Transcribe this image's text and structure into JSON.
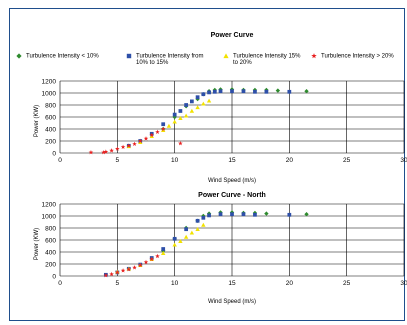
{
  "legend": [
    {
      "label_lines": [
        "Turbulence Intensity < 10%"
      ],
      "color": "#2e8b2e",
      "marker": "diamond"
    },
    {
      "label_lines": [
        "Turbulence Intensity from",
        "10% to 15%"
      ],
      "color": "#2e4fa8",
      "marker": "square"
    },
    {
      "label_lines": [
        "Turbulence Intensity 15%",
        "to 20%"
      ],
      "color": "#f2e200",
      "marker": "triangle"
    },
    {
      "label_lines": [
        "Turbulence Intensity > 20%"
      ],
      "color": "#e82020",
      "marker": "star"
    }
  ],
  "chart_data": [
    {
      "type": "scatter",
      "title": "Power Curve",
      "xlabel": "Wind Speed (m/s)",
      "ylabel": "Power (KW)",
      "xlim": [
        0,
        30
      ],
      "ylim": [
        0,
        1200
      ],
      "xticks": [
        0,
        5,
        10,
        15,
        20,
        25,
        30
      ],
      "yticks": [
        0,
        200,
        400,
        600,
        800,
        1000,
        1200
      ],
      "grid": true,
      "legend_position": "top",
      "series": [
        {
          "name": "Turbulence Intensity < 10%",
          "color": "#2e8b2e",
          "marker": "diamond",
          "points": [
            [
              9,
              400
            ],
            [
              10,
              600
            ],
            [
              11,
              780
            ],
            [
              12,
              900
            ],
            [
              12.5,
              980
            ],
            [
              13,
              1030
            ],
            [
              13.5,
              1050
            ],
            [
              14,
              1060
            ],
            [
              15,
              1060
            ],
            [
              16,
              1050
            ],
            [
              17,
              1050
            ],
            [
              18,
              1050
            ],
            [
              19,
              1040
            ],
            [
              21.5,
              1030
            ]
          ]
        },
        {
          "name": "Turbulence Intensity from 10% to 15%",
          "color": "#2e4fa8",
          "marker": "square",
          "points": [
            [
              6,
              120
            ],
            [
              7,
              200
            ],
            [
              8,
              320
            ],
            [
              9,
              480
            ],
            [
              10,
              640
            ],
            [
              10.5,
              700
            ],
            [
              11,
              800
            ],
            [
              11.5,
              860
            ],
            [
              12,
              930
            ],
            [
              12.5,
              980
            ],
            [
              13,
              1010
            ],
            [
              13.5,
              1020
            ],
            [
              14,
              1030
            ],
            [
              15,
              1030
            ],
            [
              16,
              1030
            ],
            [
              17,
              1020
            ],
            [
              18,
              1020
            ],
            [
              20,
              1020
            ]
          ]
        },
        {
          "name": "Turbulence Intensity 15% to 20%",
          "color": "#f2e200",
          "marker": "triangle",
          "points": [
            [
              6,
              110
            ],
            [
              7,
              180
            ],
            [
              8,
              280
            ],
            [
              9,
              380
            ],
            [
              9.5,
              450
            ],
            [
              10,
              520
            ],
            [
              10.5,
              580
            ],
            [
              11,
              620
            ],
            [
              11.5,
              700
            ],
            [
              12,
              760
            ],
            [
              12.5,
              820
            ],
            [
              13,
              870
            ]
          ]
        },
        {
          "name": "Turbulence Intensity > 20%",
          "color": "#e82020",
          "marker": "star",
          "points": [
            [
              2.7,
              10
            ],
            [
              3.8,
              10
            ],
            [
              4,
              20
            ],
            [
              4.5,
              40
            ],
            [
              5,
              70
            ],
            [
              5.5,
              100
            ],
            [
              6,
              120
            ],
            [
              6.5,
              150
            ],
            [
              7,
              200
            ],
            [
              7.5,
              240
            ],
            [
              8,
              300
            ],
            [
              8.5,
              350
            ],
            [
              9,
              400
            ],
            [
              10.5,
              160
            ]
          ]
        }
      ]
    },
    {
      "type": "scatter",
      "title": "Power Curve - North",
      "xlabel": "Wind Speed (m/s)",
      "ylabel": "Power (KW)",
      "xlim": [
        0,
        30
      ],
      "ylim": [
        0,
        1200
      ],
      "xticks": [
        0,
        5,
        10,
        15,
        20,
        25,
        30
      ],
      "yticks": [
        0,
        200,
        400,
        600,
        800,
        1000,
        1200
      ],
      "grid": true,
      "series": [
        {
          "name": "Turbulence Intensity < 10%",
          "color": "#2e8b2e",
          "marker": "diamond",
          "points": [
            [
              9,
              420
            ],
            [
              10,
              620
            ],
            [
              11,
              800
            ],
            [
              12,
              920
            ],
            [
              12.5,
              1000
            ],
            [
              13,
              1040
            ],
            [
              14,
              1060
            ],
            [
              15,
              1060
            ],
            [
              16,
              1050
            ],
            [
              17,
              1050
            ],
            [
              18,
              1040
            ],
            [
              21.5,
              1030
            ]
          ]
        },
        {
          "name": "Turbulence Intensity from 10% to 15%",
          "color": "#2e4fa8",
          "marker": "square",
          "points": [
            [
              4,
              20
            ],
            [
              5,
              60
            ],
            [
              6,
              120
            ],
            [
              7,
              190
            ],
            [
              8,
              300
            ],
            [
              9,
              450
            ],
            [
              10,
              620
            ],
            [
              11,
              780
            ],
            [
              12,
              920
            ],
            [
              12.5,
              970
            ],
            [
              13,
              1010
            ],
            [
              14,
              1030
            ],
            [
              15,
              1030
            ],
            [
              16,
              1030
            ],
            [
              17,
              1020
            ],
            [
              20,
              1020
            ]
          ]
        },
        {
          "name": "Turbulence Intensity 15% to 20%",
          "color": "#f2e200",
          "marker": "triangle",
          "points": [
            [
              5,
              70
            ],
            [
              6,
              120
            ],
            [
              7,
              180
            ],
            [
              8,
              280
            ],
            [
              9,
              380
            ],
            [
              10,
              520
            ],
            [
              10.5,
              580
            ],
            [
              11,
              650
            ],
            [
              11.5,
              720
            ],
            [
              12,
              780
            ],
            [
              12.5,
              850
            ]
          ]
        },
        {
          "name": "Turbulence Intensity > 20%",
          "color": "#e82020",
          "marker": "star",
          "points": [
            [
              4,
              10
            ],
            [
              4.5,
              30
            ],
            [
              5,
              60
            ],
            [
              5.5,
              90
            ],
            [
              6,
              110
            ],
            [
              6.5,
              140
            ],
            [
              7,
              180
            ],
            [
              7.5,
              230
            ],
            [
              8,
              280
            ],
            [
              8.5,
              330
            ]
          ]
        }
      ]
    }
  ]
}
